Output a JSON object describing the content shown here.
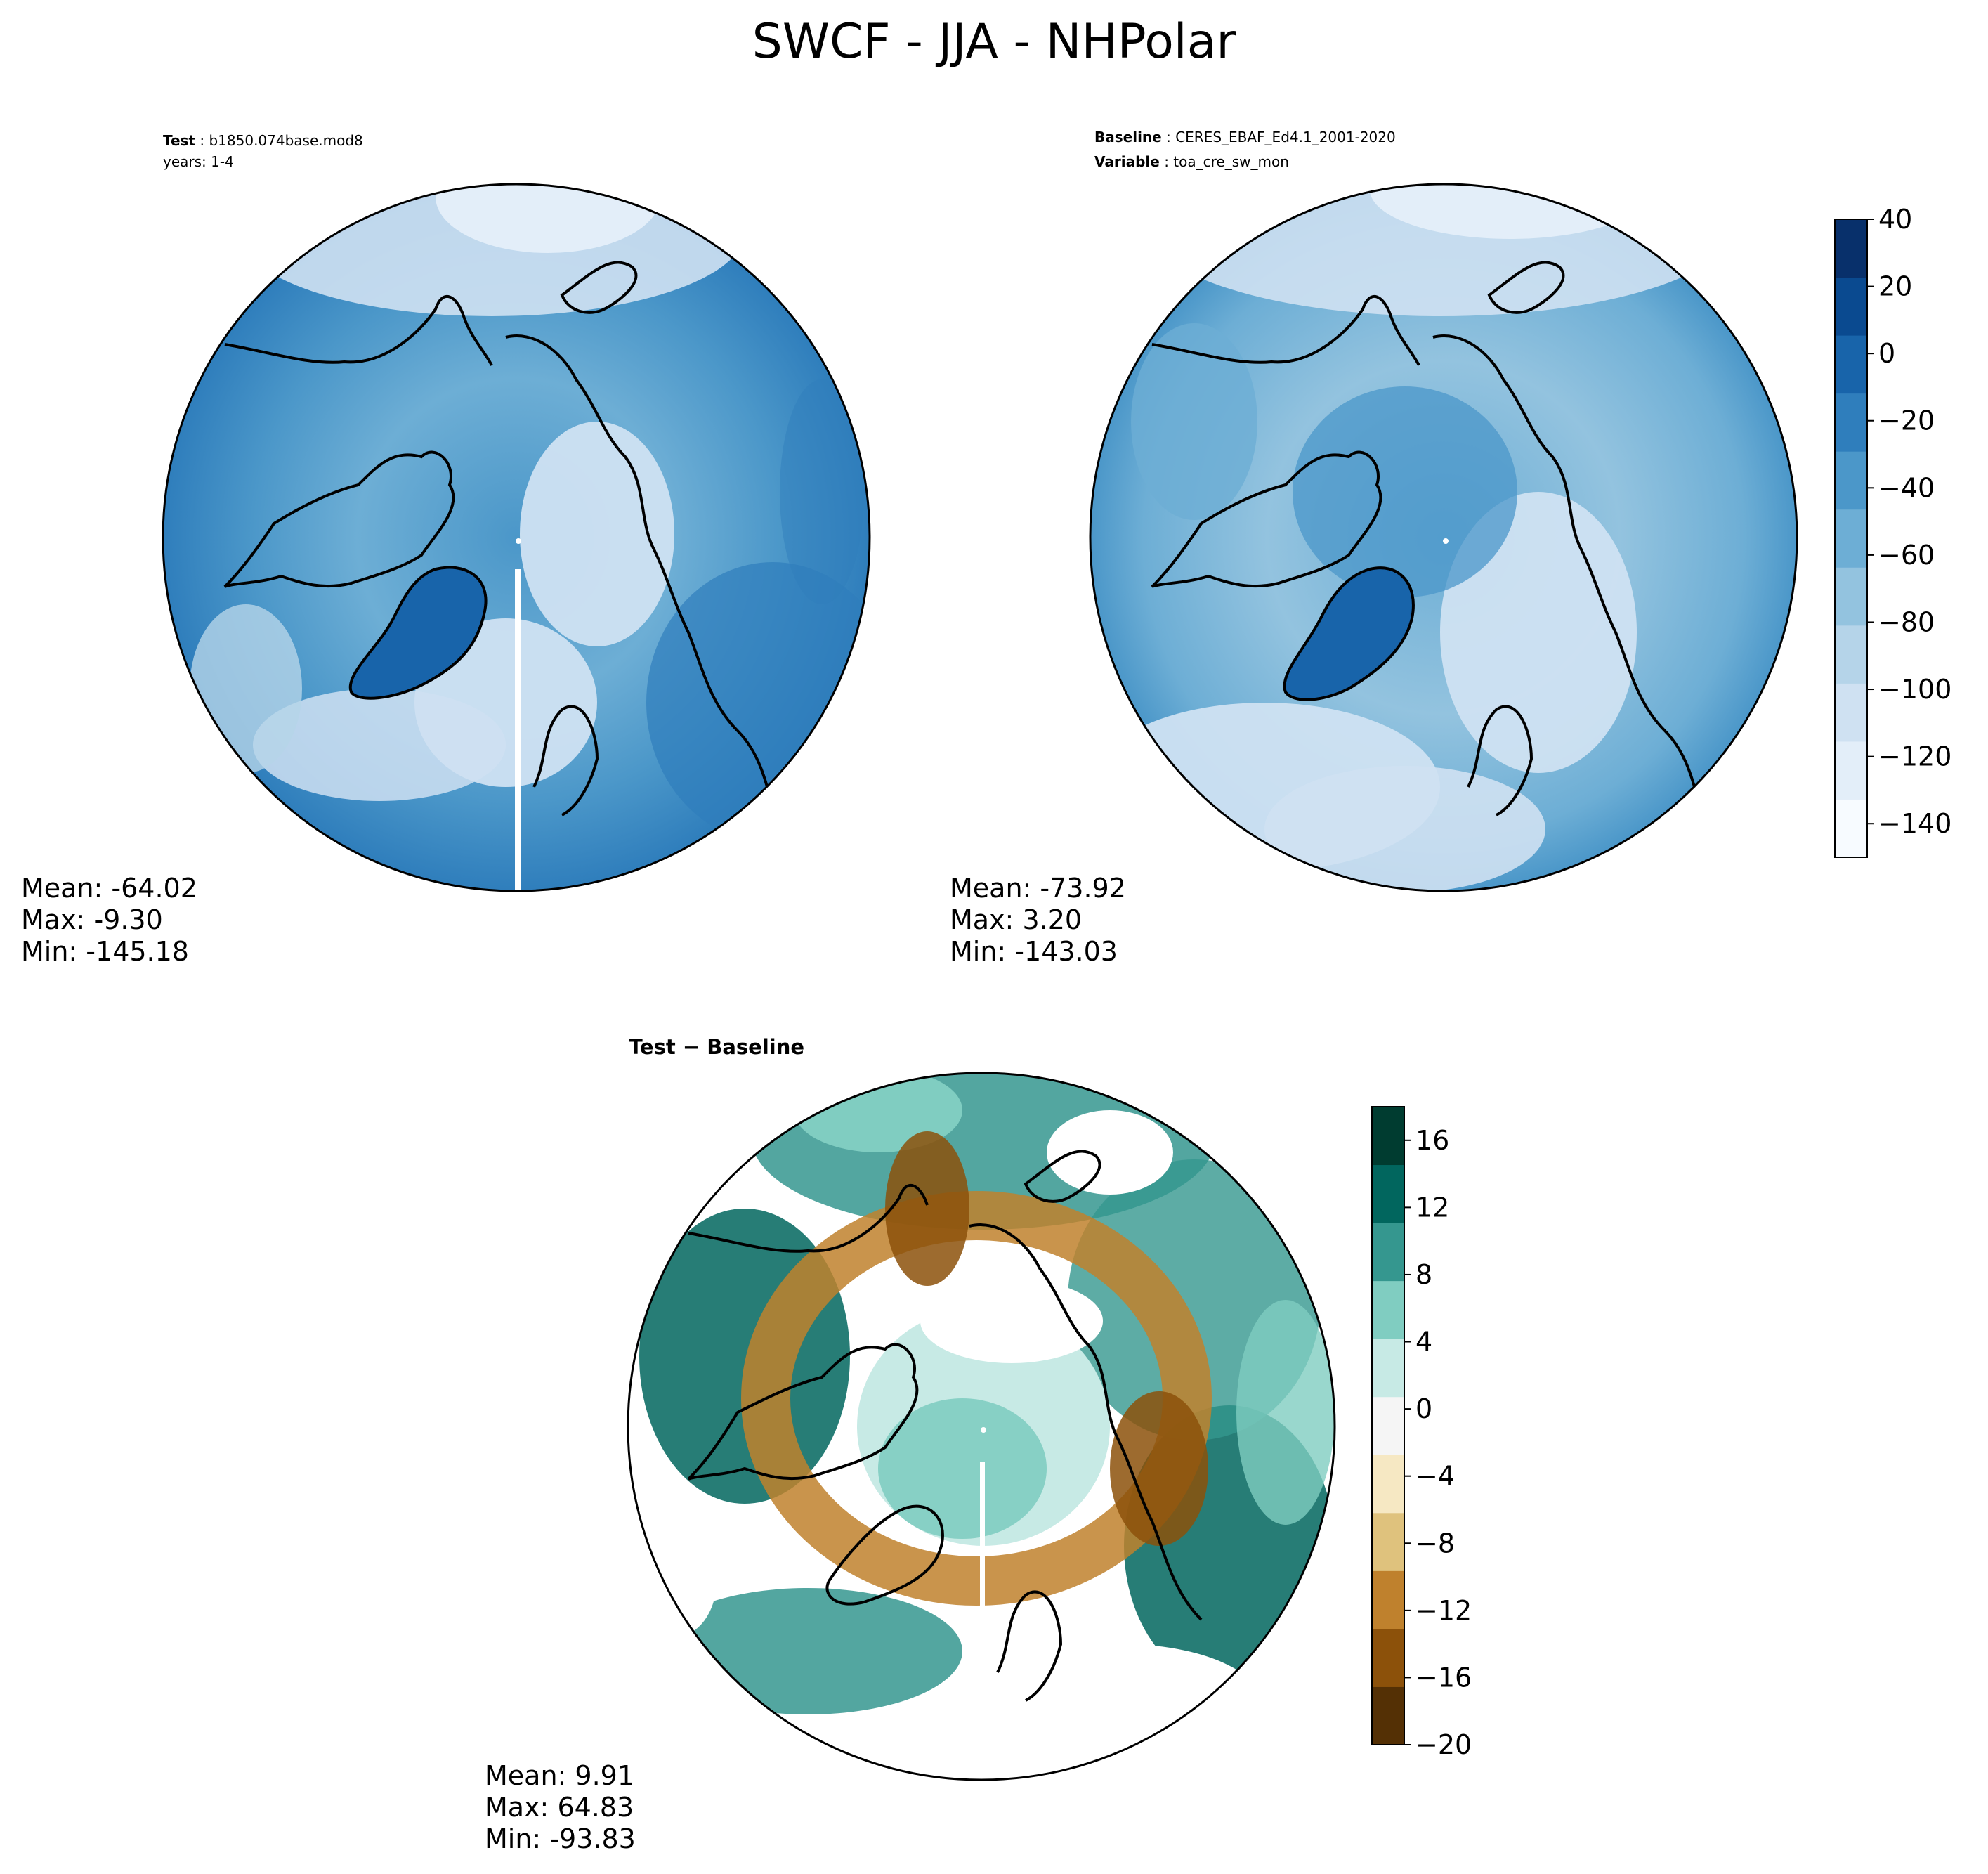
{
  "title": "SWCF - JJA - NHPolar",
  "panels": {
    "test": {
      "header": [
        {
          "key": "Test",
          "value": "b1850.074base.mod8"
        },
        {
          "key": "",
          "value": "years: 1-4"
        }
      ],
      "stats": {
        "mean": "Mean: -64.02",
        "max": "Max: -9.30",
        "min": "Min: -145.18"
      }
    },
    "baseline": {
      "header": [
        {
          "key": "Baseline",
          "value": "CERES_EBAF_Ed4.1_2001-2020"
        },
        {
          "key": "Variable",
          "value": "toa_cre_sw_mon"
        }
      ],
      "stats": {
        "mean": "Mean: -73.92",
        "max": "Max:  3.20",
        "min": "Min: -143.03"
      }
    },
    "diff": {
      "header": [
        {
          "key": "Test − Baseline",
          "value": ""
        }
      ],
      "stats": {
        "mean": "Mean:  9.91",
        "max": "Max: 64.83",
        "min": "Min: -93.83"
      }
    }
  },
  "colorbars": {
    "blues": {
      "ticks": [
        "40",
        "20",
        "0",
        "−20",
        "−40",
        "−60",
        "−80",
        "−100",
        "−120",
        "−140"
      ],
      "range": [
        -150,
        40
      ],
      "colors": [
        "#f7fbff",
        "#e3eef9",
        "#cfe1f2",
        "#b5d4e9",
        "#93c3df",
        "#6daed5",
        "#4b97c9",
        "#2f7ebc",
        "#1864aa",
        "#0a4a90",
        "#08306b"
      ]
    },
    "diverging": {
      "ticks": [
        "16",
        "12",
        "8",
        "4",
        "0",
        "−4",
        "−8",
        "−12",
        "−16",
        "−20"
      ],
      "range": [
        -20,
        18
      ],
      "colors": [
        "#543005",
        "#8c510a",
        "#bf812d",
        "#dfc27d",
        "#f6e8c3",
        "#f5f5f5",
        "#c7eae5",
        "#80cdc1",
        "#35978f",
        "#01665e",
        "#003c30"
      ]
    }
  },
  "chart_data": [
    {
      "type": "heatmap",
      "title": "SWCF - JJA - NHPolar",
      "subtitle": "Test: b1850.074base.mod8 years: 1-4",
      "projection": "north polar stereographic",
      "stats": {
        "mean": -64.02,
        "max": -9.3,
        "min": -145.18
      },
      "colorbar_range": [
        -150,
        40
      ],
      "colorbar_ticks": [
        40,
        20,
        0,
        -20,
        -40,
        -60,
        -80,
        -100,
        -120,
        -140
      ]
    },
    {
      "type": "heatmap",
      "subtitle": "Baseline: CERES_EBAF_Ed4.1_2001-2020 Variable: toa_cre_sw_mon",
      "projection": "north polar stereographic",
      "stats": {
        "mean": -73.92,
        "max": 3.2,
        "min": -143.03
      },
      "colorbar_range": [
        -150,
        40
      ],
      "colorbar_ticks": [
        40,
        20,
        0,
        -20,
        -40,
        -60,
        -80,
        -100,
        -120,
        -140
      ]
    },
    {
      "type": "heatmap",
      "subtitle": "Test − Baseline",
      "projection": "north polar stereographic",
      "stats": {
        "mean": 9.91,
        "max": 64.83,
        "min": -93.83
      },
      "colorbar_range": [
        -20,
        18
      ],
      "colorbar_ticks": [
        16,
        12,
        8,
        4,
        0,
        -4,
        -8,
        -12,
        -16,
        -20
      ]
    }
  ]
}
